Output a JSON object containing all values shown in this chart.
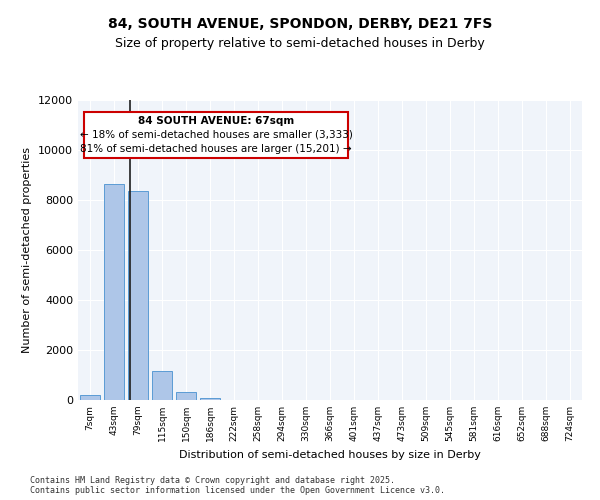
{
  "title_line1": "84, SOUTH AVENUE, SPONDON, DERBY, DE21 7FS",
  "title_line2": "Size of property relative to semi-detached houses in Derby",
  "xlabel": "Distribution of semi-detached houses by size in Derby",
  "ylabel": "Number of semi-detached properties",
  "footnote_line1": "Contains HM Land Registry data © Crown copyright and database right 2025.",
  "footnote_line2": "Contains public sector information licensed under the Open Government Licence v3.0.",
  "annotation_line1": "84 SOUTH AVENUE: 67sqm",
  "annotation_line2": "← 18% of semi-detached houses are smaller (3,333)",
  "annotation_line3": "81% of semi-detached houses are larger (15,201) →",
  "property_size_sqm": 67,
  "bin_labels": [
    "7sqm",
    "43sqm",
    "79sqm",
    "115sqm",
    "150sqm",
    "186sqm",
    "222sqm",
    "258sqm",
    "294sqm",
    "330sqm",
    "366sqm",
    "401sqm",
    "437sqm",
    "473sqm",
    "509sqm",
    "545sqm",
    "581sqm",
    "616sqm",
    "652sqm",
    "688sqm",
    "724sqm"
  ],
  "bar_values": [
    200,
    8650,
    8350,
    1150,
    320,
    90,
    0,
    0,
    0,
    0,
    0,
    0,
    0,
    0,
    0,
    0,
    0,
    0,
    0,
    0,
    0
  ],
  "bar_color": "#aec6e8",
  "bar_edge_color": "#5b9bd5",
  "vline_color": "#1f1f1f",
  "annotation_box_color": "#cc0000",
  "background_color": "#f0f4fa",
  "grid_color": "#ffffff",
  "ylim": [
    0,
    12000
  ],
  "yticks": [
    0,
    2000,
    4000,
    6000,
    8000,
    10000,
    12000
  ]
}
